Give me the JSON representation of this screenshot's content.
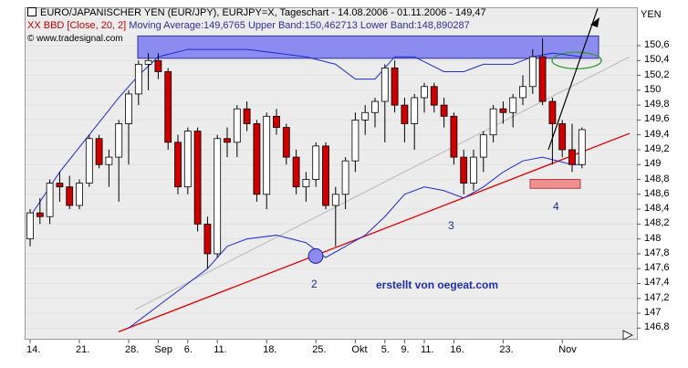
{
  "header": {
    "title": "EURO/JAPANISCHER YEN (EUR/JPY), EURJPY=X, Tageschart - 14.08.2006 - 01.11.2006 - 149,47",
    "legend_red": "XX BBD [Close, 20, 2]",
    "legend_rest": " Moving Average:149,6765 Upper Band:150,462713 Lower Band:148,890287",
    "copyright": "© www.tradesignal.com"
  },
  "annotations": {
    "point_2": "2",
    "point_3": "3",
    "point_4": "4",
    "watermark": "erstellt von oegeat.com"
  },
  "colors": {
    "up_candle": "#ffffff",
    "down_candle": "#cc0000",
    "bollinger": "#1a2bd6",
    "trendline_red": "#e00000",
    "trendline_grey": "#b8b8b8",
    "resistance_zone": "#8c8cf0",
    "target_zone": "#f09090",
    "target_ellipse": "#3a9a3a"
  },
  "chart_data": {
    "type": "candlestick",
    "unit": "YEN",
    "ylim": [
      146.7,
      151.0
    ],
    "yticks": [
      "150,6",
      "150,4",
      "150,2",
      "150",
      "149,8",
      "149,6",
      "149,4",
      "149,2",
      "149",
      "148,8",
      "148,6",
      "148,4",
      "148,2",
      "148",
      "147,8",
      "147,6",
      "147,4",
      "147,2",
      "147",
      "146,8"
    ],
    "yticks_values": [
      150.6,
      150.4,
      150.2,
      150.0,
      149.8,
      149.6,
      149.4,
      149.2,
      149.0,
      148.8,
      148.6,
      148.4,
      148.2,
      148.0,
      147.8,
      147.6,
      147.4,
      147.2,
      147.0,
      146.8
    ],
    "xticks": [
      "14.",
      "21.",
      "28.",
      "Sep",
      "6.",
      "11.",
      "18.",
      "25.",
      "Okt",
      "5.",
      "9.",
      "11.",
      "16.",
      "23.",
      "Nov"
    ],
    "xticks_index": [
      0,
      5,
      10,
      13,
      16,
      19,
      24,
      29,
      33,
      36,
      38,
      40,
      43,
      48,
      54
    ],
    "candles": [
      {
        "o": 148.0,
        "h": 148.4,
        "l": 147.9,
        "c": 148.35
      },
      {
        "o": 148.35,
        "h": 148.55,
        "l": 148.2,
        "c": 148.3
      },
      {
        "o": 148.3,
        "h": 148.8,
        "l": 148.2,
        "c": 148.75
      },
      {
        "o": 148.75,
        "h": 148.9,
        "l": 148.5,
        "c": 148.7
      },
      {
        "o": 148.7,
        "h": 148.85,
        "l": 148.4,
        "c": 148.45
      },
      {
        "o": 148.45,
        "h": 148.8,
        "l": 148.4,
        "c": 148.75
      },
      {
        "o": 148.75,
        "h": 149.4,
        "l": 148.7,
        "c": 149.35
      },
      {
        "o": 149.35,
        "h": 149.4,
        "l": 148.95,
        "c": 149.0
      },
      {
        "o": 149.0,
        "h": 149.2,
        "l": 148.7,
        "c": 149.1
      },
      {
        "o": 149.1,
        "h": 149.6,
        "l": 148.5,
        "c": 149.55
      },
      {
        "o": 149.55,
        "h": 150.0,
        "l": 149.0,
        "c": 149.95
      },
      {
        "o": 149.95,
        "h": 150.4,
        "l": 149.8,
        "c": 150.35
      },
      {
        "o": 150.35,
        "h": 150.5,
        "l": 150.0,
        "c": 150.4
      },
      {
        "o": 150.4,
        "h": 150.5,
        "l": 150.15,
        "c": 150.25
      },
      {
        "o": 150.25,
        "h": 150.3,
        "l": 149.2,
        "c": 149.3
      },
      {
        "o": 149.3,
        "h": 149.4,
        "l": 148.6,
        "c": 148.7
      },
      {
        "o": 148.7,
        "h": 149.5,
        "l": 148.6,
        "c": 149.45
      },
      {
        "o": 149.45,
        "h": 149.5,
        "l": 148.1,
        "c": 148.2
      },
      {
        "o": 148.2,
        "h": 148.3,
        "l": 147.6,
        "c": 147.8
      },
      {
        "o": 147.8,
        "h": 149.4,
        "l": 147.75,
        "c": 149.35
      },
      {
        "o": 149.35,
        "h": 149.5,
        "l": 149.1,
        "c": 149.3
      },
      {
        "o": 149.3,
        "h": 149.8,
        "l": 149.1,
        "c": 149.75
      },
      {
        "o": 149.75,
        "h": 149.85,
        "l": 149.45,
        "c": 149.55
      },
      {
        "o": 149.55,
        "h": 149.6,
        "l": 148.5,
        "c": 148.6
      },
      {
        "o": 148.6,
        "h": 149.7,
        "l": 148.4,
        "c": 149.65
      },
      {
        "o": 149.65,
        "h": 149.75,
        "l": 149.4,
        "c": 149.5
      },
      {
        "o": 149.5,
        "h": 149.55,
        "l": 149.0,
        "c": 149.1
      },
      {
        "o": 149.1,
        "h": 149.2,
        "l": 148.6,
        "c": 148.7
      },
      {
        "o": 148.7,
        "h": 148.9,
        "l": 148.5,
        "c": 148.8
      },
      {
        "o": 148.8,
        "h": 149.3,
        "l": 148.7,
        "c": 149.25
      },
      {
        "o": 149.25,
        "h": 149.3,
        "l": 148.4,
        "c": 148.45
      },
      {
        "o": 148.45,
        "h": 148.7,
        "l": 147.9,
        "c": 148.6
      },
      {
        "o": 148.6,
        "h": 149.1,
        "l": 148.4,
        "c": 149.05
      },
      {
        "o": 149.05,
        "h": 149.7,
        "l": 148.9,
        "c": 149.6
      },
      {
        "o": 149.6,
        "h": 149.8,
        "l": 149.4,
        "c": 149.7
      },
      {
        "o": 149.7,
        "h": 149.9,
        "l": 149.5,
        "c": 149.85
      },
      {
        "o": 149.85,
        "h": 150.35,
        "l": 149.3,
        "c": 150.3
      },
      {
        "o": 150.3,
        "h": 150.4,
        "l": 149.7,
        "c": 149.8
      },
      {
        "o": 149.8,
        "h": 149.9,
        "l": 149.3,
        "c": 149.55
      },
      {
        "o": 149.55,
        "h": 149.95,
        "l": 149.2,
        "c": 149.9
      },
      {
        "o": 149.9,
        "h": 150.1,
        "l": 149.7,
        "c": 150.05
      },
      {
        "o": 150.05,
        "h": 150.1,
        "l": 149.7,
        "c": 149.8
      },
      {
        "o": 149.8,
        "h": 149.9,
        "l": 149.5,
        "c": 149.65
      },
      {
        "o": 149.65,
        "h": 149.7,
        "l": 149.0,
        "c": 149.1
      },
      {
        "o": 149.1,
        "h": 149.2,
        "l": 148.6,
        "c": 148.75
      },
      {
        "o": 148.75,
        "h": 149.2,
        "l": 148.65,
        "c": 149.1
      },
      {
        "o": 149.1,
        "h": 149.45,
        "l": 148.9,
        "c": 149.4
      },
      {
        "o": 149.4,
        "h": 149.8,
        "l": 149.3,
        "c": 149.75
      },
      {
        "o": 149.75,
        "h": 149.85,
        "l": 149.55,
        "c": 149.7
      },
      {
        "o": 149.7,
        "h": 149.95,
        "l": 149.5,
        "c": 149.9
      },
      {
        "o": 149.9,
        "h": 150.2,
        "l": 149.8,
        "c": 150.05
      },
      {
        "o": 150.05,
        "h": 150.55,
        "l": 149.95,
        "c": 150.45
      },
      {
        "o": 150.45,
        "h": 150.7,
        "l": 149.8,
        "c": 149.85
      },
      {
        "o": 149.85,
        "h": 149.9,
        "l": 149.0,
        "c": 149.55
      },
      {
        "o": 149.55,
        "h": 149.6,
        "l": 149.1,
        "c": 149.2
      },
      {
        "o": 149.2,
        "h": 149.55,
        "l": 148.9,
        "c": 149.0
      },
      {
        "o": 149.0,
        "h": 149.5,
        "l": 148.95,
        "c": 149.47
      }
    ],
    "bollinger_upper": [
      [
        0,
        148.3
      ],
      [
        3,
        148.9
      ],
      [
        6,
        149.4
      ],
      [
        9,
        149.9
      ],
      [
        11,
        150.2
      ],
      [
        13,
        150.45
      ],
      [
        16,
        150.55
      ],
      [
        19,
        150.55
      ],
      [
        22,
        150.55
      ],
      [
        25,
        150.5
      ],
      [
        28,
        150.45
      ],
      [
        31,
        150.35
      ],
      [
        33,
        150.15
      ],
      [
        35,
        150.15
      ],
      [
        37,
        150.45
      ],
      [
        39,
        150.45
      ],
      [
        42,
        150.25
      ],
      [
        44,
        150.25
      ],
      [
        46,
        150.35
      ],
      [
        49,
        150.35
      ],
      [
        51,
        150.45
      ],
      [
        53,
        150.5
      ],
      [
        56,
        150.45
      ]
    ],
    "bollinger_lower": [
      [
        10,
        146.8
      ],
      [
        13,
        147.1
      ],
      [
        16,
        147.4
      ],
      [
        18,
        147.6
      ],
      [
        20,
        147.9
      ],
      [
        22,
        148.0
      ],
      [
        25,
        148.05
      ],
      [
        28,
        147.95
      ],
      [
        30,
        147.75
      ],
      [
        32,
        147.9
      ],
      [
        34,
        148.05
      ],
      [
        36,
        148.3
      ],
      [
        38,
        148.6
      ],
      [
        40,
        148.7
      ],
      [
        42,
        148.65
      ],
      [
        44,
        148.55
      ],
      [
        46,
        148.7
      ],
      [
        48,
        148.9
      ],
      [
        50,
        149.05
      ],
      [
        52,
        149.1
      ],
      [
        55,
        149.0
      ],
      [
        56,
        149.0
      ]
    ]
  }
}
